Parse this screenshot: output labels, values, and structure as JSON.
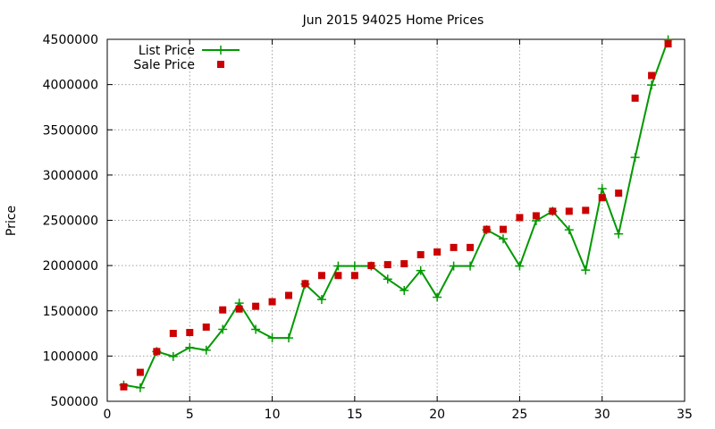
{
  "chart_data": {
    "type": "line",
    "title": "Jun 2015 94025 Home Prices",
    "xlabel": "",
    "ylabel": "Price",
    "xlim": [
      0,
      35
    ],
    "ylim": [
      500000,
      4500000
    ],
    "xticks": [
      0,
      5,
      10,
      15,
      20,
      25,
      30,
      35
    ],
    "yticks": [
      500000,
      1000000,
      1500000,
      2000000,
      2500000,
      3000000,
      3500000,
      4000000,
      4500000
    ],
    "grid": true,
    "legend_position": "top-left",
    "series": [
      {
        "name": "List Price",
        "style": "line-with-plus-markers",
        "color": "#009900",
        "x": [
          1,
          2,
          3,
          4,
          5,
          6,
          7,
          8,
          9,
          10,
          11,
          12,
          13,
          14,
          15,
          16,
          17,
          18,
          19,
          20,
          21,
          22,
          23,
          24,
          25,
          26,
          27,
          28,
          29,
          30,
          31,
          32,
          33,
          34
        ],
        "y": [
          680000,
          650000,
          1050000,
          995000,
          1095000,
          1065000,
          1295000,
          1585000,
          1295000,
          1200000,
          1200000,
          1795000,
          1625000,
          1995000,
          1995000,
          1995000,
          1850000,
          1725000,
          1945000,
          1650000,
          1995000,
          1995000,
          2395000,
          2295000,
          1995000,
          2495000,
          2600000,
          2395000,
          1950000,
          2850000,
          2350000,
          3195000,
          3995000,
          4495000
        ]
      },
      {
        "name": "Sale Price",
        "style": "square-markers",
        "color": "#cc0000",
        "x": [
          1,
          2,
          3,
          4,
          5,
          6,
          7,
          8,
          9,
          10,
          11,
          12,
          13,
          14,
          15,
          16,
          17,
          18,
          19,
          20,
          21,
          22,
          23,
          24,
          25,
          26,
          27,
          28,
          29,
          30,
          31,
          32,
          33,
          34
        ],
        "y": [
          660000,
          820000,
          1050000,
          1250000,
          1260000,
          1320000,
          1510000,
          1520000,
          1550000,
          1600000,
          1670000,
          1800000,
          1890000,
          1890000,
          1890000,
          2000000,
          2010000,
          2020000,
          2120000,
          2150000,
          2200000,
          2200000,
          2400000,
          2400000,
          2530000,
          2550000,
          2600000,
          2600000,
          2610000,
          2750000,
          2800000,
          3850000,
          4100000,
          4450000
        ]
      }
    ]
  }
}
